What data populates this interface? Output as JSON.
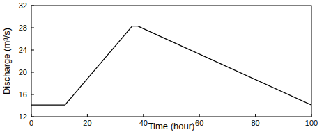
{
  "chart_data": {
    "type": "line",
    "x_label": "Time (hour)",
    "y_label": "Discharge (m³/s)",
    "x": [
      0,
      12,
      36,
      38,
      100
    ],
    "values": [
      14.1,
      14.1,
      28.3,
      28.3,
      14.1
    ],
    "color": "#000000",
    "xlim": [
      0,
      100
    ],
    "ylim": [
      12,
      32
    ],
    "xticks": [
      0,
      20,
      40,
      60,
      80,
      100
    ],
    "yticks": [
      12,
      16,
      20,
      24,
      28,
      32
    ],
    "grid": false
  }
}
